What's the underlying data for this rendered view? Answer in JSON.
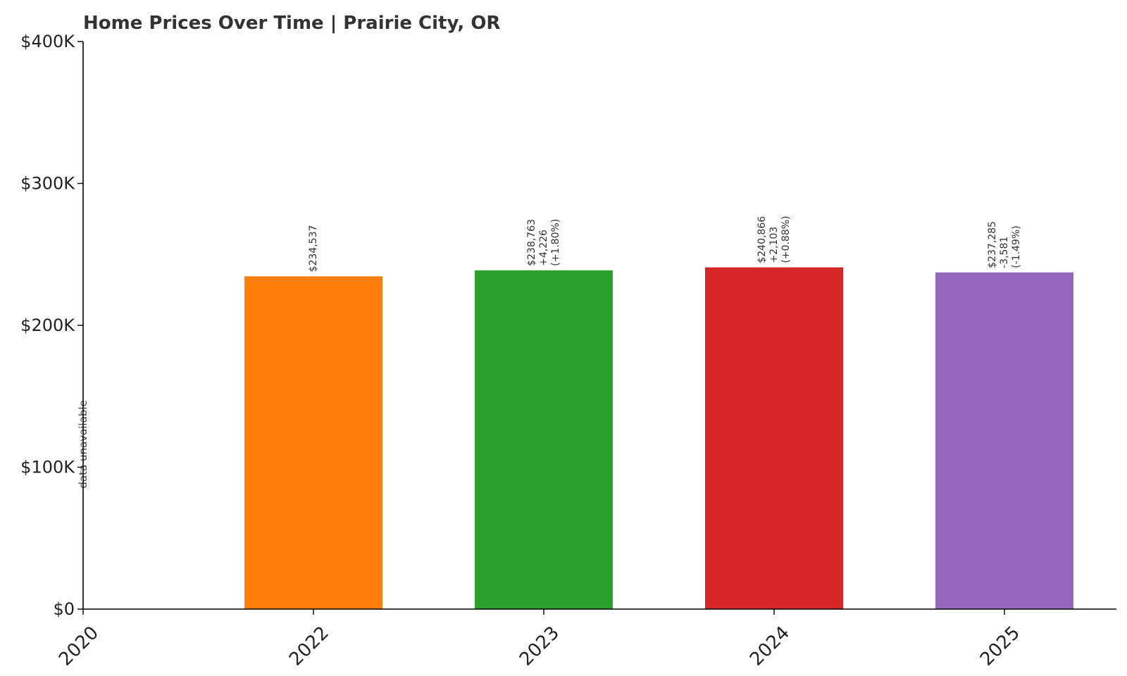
{
  "chart_data": {
    "type": "bar",
    "title": "Home Prices Over Time | Prairie City, OR",
    "xlabel": "",
    "ylabel": "",
    "categories": [
      "2020",
      "2022",
      "2023",
      "2024",
      "2025"
    ],
    "values": [
      null,
      234537,
      238763,
      240866,
      237285
    ],
    "colors": [
      "#1f77b4",
      "#ff7f0e",
      "#2ca02c",
      "#d62728",
      "#9467bd"
    ],
    "bar_labels": [
      [
        "data unavailable"
      ],
      [
        "$234,537"
      ],
      [
        "$238,763",
        "+4,226",
        "(+1.80%)"
      ],
      [
        "$240,866",
        "+2,103",
        "(+0.88%)"
      ],
      [
        "$237,285",
        "-3,581",
        "(-1.49%)"
      ]
    ],
    "ylim": [
      0,
      400000
    ],
    "yticks": [
      0,
      100000,
      200000,
      300000,
      400000
    ],
    "ytick_labels": [
      "$0",
      "$100K",
      "$200K",
      "$300K",
      "$400K"
    ],
    "grid": false,
    "legend": "none"
  }
}
